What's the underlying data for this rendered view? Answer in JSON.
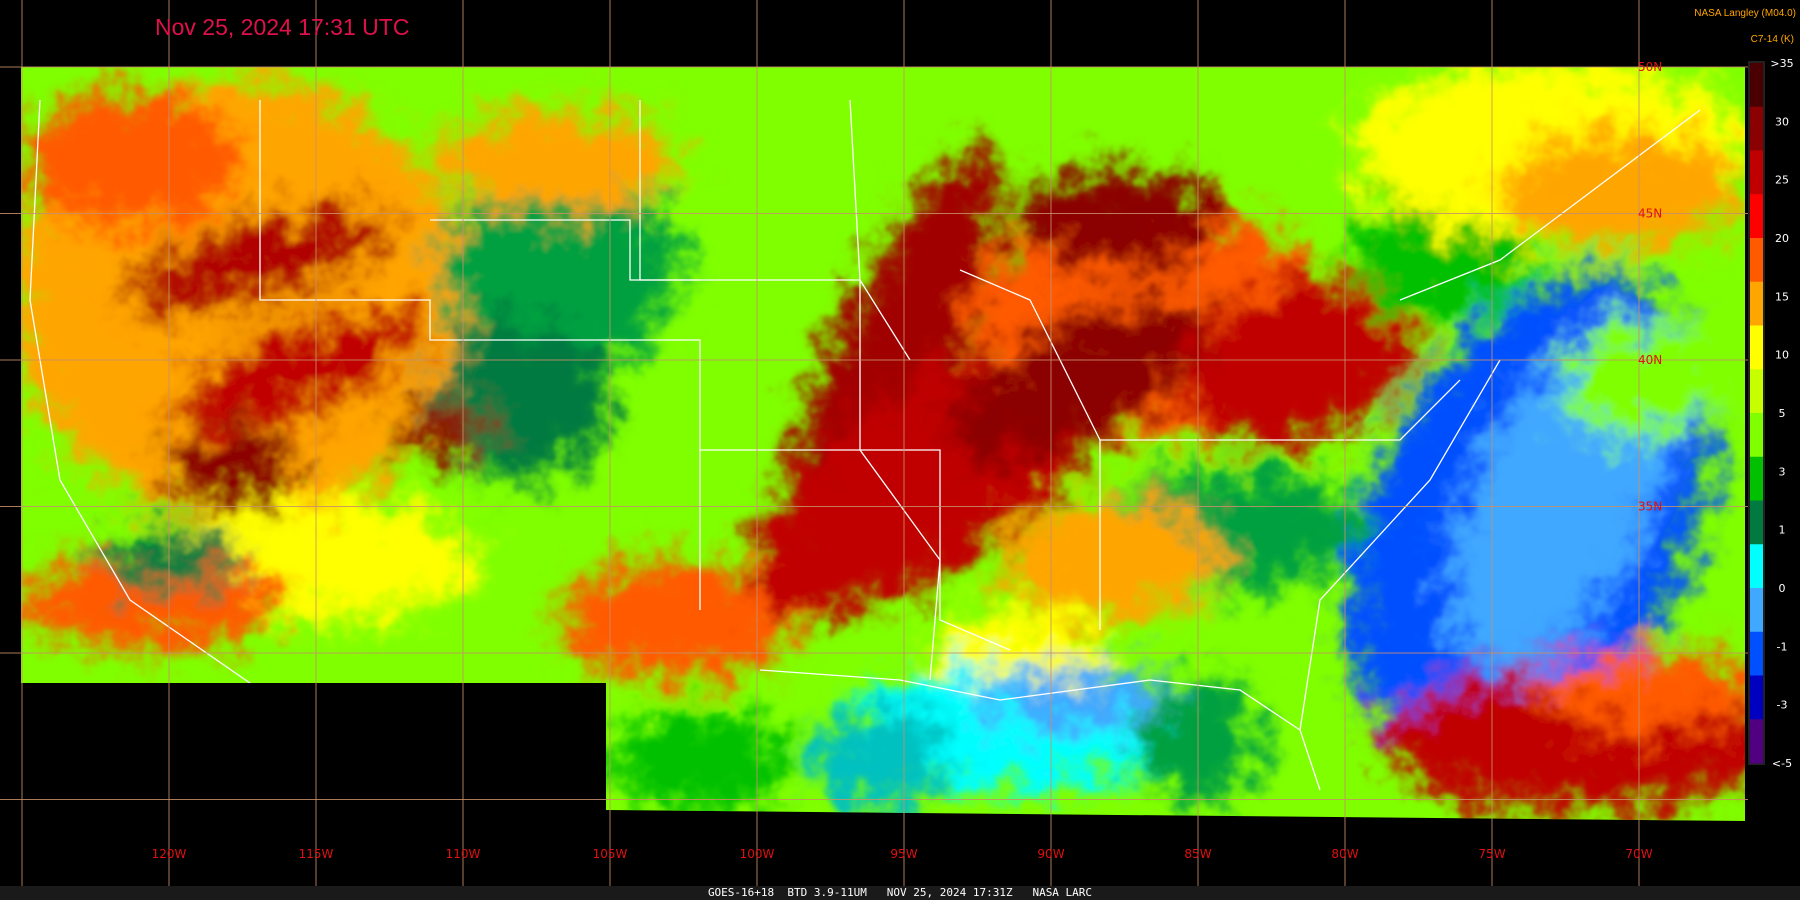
{
  "title": "Nov 25, 2024 17:31 UTC",
  "credit": "NASA Langley (M04.0)",
  "colorbar": {
    "title": "C7-14 (K)",
    "labels": [
      ">35",
      "30",
      "25",
      "20",
      "15",
      "10",
      "5",
      "3",
      "1",
      "0",
      "-1",
      "-3",
      "<-5"
    ],
    "colors": [
      "#4a0000",
      "#8b0000",
      "#c00000",
      "#ff0000",
      "#ff5a00",
      "#ffa500",
      "#ffff00",
      "#c8ff00",
      "#80ff00",
      "#00c000",
      "#007a40",
      "#00ffff",
      "#40a8ff",
      "#0050ff",
      "#0000c0",
      "#500080"
    ]
  },
  "longitude_labels": [
    "120W",
    "115W",
    "110W",
    "105W",
    "100W",
    "95W",
    "90W",
    "85W",
    "80W",
    "75W",
    "70W"
  ],
  "latitude_labels": [
    "50N",
    "45N",
    "40N",
    "35N"
  ],
  "footer": "GOES-16+18  BTD 3.9-11UM   NOV 25, 2024 17:31Z   NASA LARC"
}
